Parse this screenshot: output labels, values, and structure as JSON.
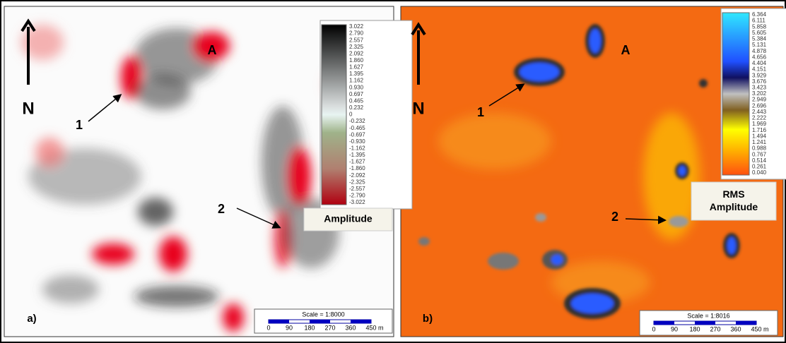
{
  "panels": [
    {
      "label": "a)",
      "north": "N",
      "markers": [
        "A",
        "1",
        "2"
      ],
      "legend": {
        "title": "Amplitude",
        "values": [
          "3.022",
          "2.790",
          "2.557",
          "2.325",
          "2.092",
          "1.860",
          "1.627",
          "1.395",
          "1.162",
          "0.930",
          "0.697",
          "0.465",
          "0.232",
          "0",
          "-0.232",
          "-0.465",
          "-0.697",
          "-0.930",
          "-1.162",
          "-1.395",
          "-1.627",
          "-1.860",
          "-2.092",
          "-2.325",
          "-2.557",
          "-2.790",
          "-3.022"
        ]
      },
      "scale": {
        "text": "Scale = 1:8000",
        "ticks": [
          "0",
          "90",
          "180",
          "270",
          "360",
          "450"
        ],
        "unit": "m"
      }
    },
    {
      "label": "b)",
      "north": "N",
      "markers": [
        "A",
        "1",
        "2"
      ],
      "legend": {
        "title": "RMS Amplitude",
        "values": [
          "6.364",
          "6.111",
          "5.858",
          "5.605",
          "5.384",
          "5.131",
          "4.878",
          "4.656",
          "4.404",
          "4.151",
          "3.929",
          "3.676",
          "3.423",
          "3.202",
          "2.949",
          "2.696",
          "2.443",
          "2.222",
          "1.969",
          "1.716",
          "1.494",
          "1.241",
          "0.988",
          "0.767",
          "0.514",
          "0.261",
          "0.040"
        ]
      },
      "scale": {
        "text": "Scale = 1:8016",
        "ticks": [
          "0",
          "90",
          "180",
          "270",
          "360",
          "450"
        ],
        "unit": "m"
      }
    }
  ]
}
